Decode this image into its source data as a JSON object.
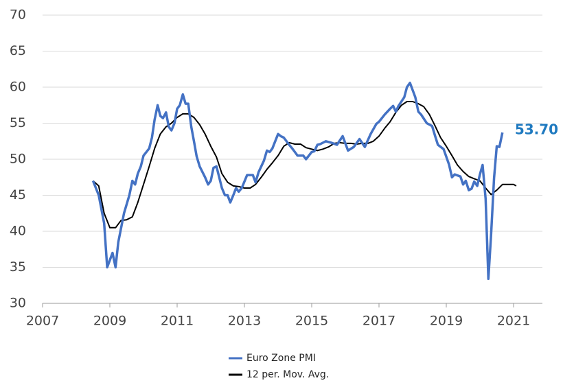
{
  "chart_data": {
    "type": "line",
    "xlim": [
      2007,
      2022
    ],
    "xticks": [
      2007,
      2009,
      2011,
      2013,
      2015,
      2017,
      2019,
      2021
    ],
    "ylim": [
      30,
      70
    ],
    "yticks": [
      30,
      35,
      40,
      45,
      50,
      55,
      60,
      65,
      70
    ],
    "grid": true,
    "legend": "bottom",
    "series": [
      {
        "name": "Euro Zone PMI",
        "color": "#4472c4",
        "x": [
          2008.5,
          2008.67,
          2008.83,
          2008.92,
          2009.0,
          2009.08,
          2009.17,
          2009.25,
          2009.42,
          2009.58,
          2009.67,
          2009.75,
          2009.83,
          2009.92,
          2010.0,
          2010.17,
          2010.25,
          2010.33,
          2010.42,
          2010.5,
          2010.58,
          2010.67,
          2010.75,
          2010.83,
          2010.92,
          2011.0,
          2011.08,
          2011.17,
          2011.25,
          2011.33,
          2011.42,
          2011.5,
          2011.58,
          2011.67,
          2011.83,
          2011.92,
          2012.0,
          2012.08,
          2012.17,
          2012.33,
          2012.42,
          2012.5,
          2012.58,
          2012.67,
          2012.75,
          2012.83,
          2012.92,
          2013.08,
          2013.25,
          2013.33,
          2013.42,
          2013.58,
          2013.67,
          2013.75,
          2013.83,
          2014.0,
          2014.08,
          2014.17,
          2014.33,
          2014.42,
          2014.5,
          2014.58,
          2014.75,
          2014.83,
          2015.0,
          2015.08,
          2015.17,
          2015.25,
          2015.42,
          2015.58,
          2015.75,
          2015.92,
          2016.08,
          2016.25,
          2016.42,
          2016.58,
          2016.75,
          2016.92,
          2017.0,
          2017.17,
          2017.33,
          2017.42,
          2017.5,
          2017.58,
          2017.75,
          2017.83,
          2017.92,
          2018.0,
          2018.08,
          2018.17,
          2018.25,
          2018.42,
          2018.58,
          2018.67,
          2018.75,
          2018.92,
          2019.08,
          2019.17,
          2019.25,
          2019.42,
          2019.5,
          2019.58,
          2019.67,
          2019.75,
          2019.83,
          2019.92,
          2020.0,
          2020.08,
          2020.17,
          2020.25,
          2020.33,
          2020.42,
          2020.5,
          2020.58,
          2020.67
        ],
        "values": [
          47,
          45,
          41.1,
          35,
          36,
          37,
          35,
          38.5,
          42.5,
          45,
          47,
          46.5,
          48,
          49,
          50.5,
          51.5,
          53,
          55.5,
          57.5,
          56,
          55.7,
          56.5,
          54.5,
          54,
          55,
          57,
          57.5,
          59,
          57.7,
          57.7,
          54.5,
          52.5,
          50.4,
          49,
          47.5,
          46.5,
          47,
          48.8,
          49,
          46,
          45,
          45,
          44,
          45,
          46,
          45.5,
          46,
          47.8,
          47.8,
          46.8,
          48.2,
          49.8,
          51.2,
          51,
          51.5,
          53.5,
          53.2,
          53,
          52,
          51.5,
          51,
          50.5,
          50.5,
          50,
          51,
          51.1,
          52,
          52.1,
          52.5,
          52.3,
          52,
          53.2,
          51.2,
          51.7,
          52.8,
          51.7,
          53.5,
          54.9,
          55.2,
          56.2,
          57,
          57.4,
          56.6,
          57.4,
          58.6,
          60,
          60.6,
          59.6,
          58.6,
          56.6,
          56.2,
          55,
          54.6,
          53.2,
          52,
          51.4,
          49.3,
          47.5,
          47.9,
          47.6,
          46.5,
          47,
          45.7,
          45.9,
          46.9,
          46.3,
          47.9,
          49.2,
          44.5,
          33.4,
          39.4,
          47.4,
          51.8,
          51.7,
          53.7
        ]
      },
      {
        "name": "12 per. Mov. Avg.",
        "color": "#000000",
        "x": [
          2008.5,
          2008.67,
          2008.83,
          2009.0,
          2009.17,
          2009.33,
          2009.5,
          2009.67,
          2009.83,
          2010.0,
          2010.17,
          2010.33,
          2010.5,
          2010.67,
          2010.83,
          2011.0,
          2011.17,
          2011.33,
          2011.5,
          2011.67,
          2011.83,
          2012.0,
          2012.17,
          2012.33,
          2012.5,
          2012.67,
          2012.83,
          2013.0,
          2013.17,
          2013.33,
          2013.5,
          2013.67,
          2013.83,
          2014.0,
          2014.17,
          2014.33,
          2014.5,
          2014.67,
          2014.83,
          2015.0,
          2015.17,
          2015.33,
          2015.5,
          2015.67,
          2015.83,
          2016.0,
          2016.17,
          2016.33,
          2016.5,
          2016.67,
          2016.83,
          2017.0,
          2017.17,
          2017.33,
          2017.5,
          2017.67,
          2017.83,
          2018.0,
          2018.17,
          2018.33,
          2018.5,
          2018.67,
          2018.83,
          2019.0,
          2019.17,
          2019.33,
          2019.5,
          2019.67,
          2019.83,
          2020.0,
          2020.17,
          2020.33,
          2020.5,
          2020.67,
          2020.83,
          2021.0,
          2021.08
        ],
        "values": [
          47,
          46.3,
          42.5,
          40.5,
          40.5,
          41.5,
          41.6,
          42,
          44,
          46.5,
          49,
          51.5,
          53.5,
          54.5,
          55,
          55.8,
          56.3,
          56.3,
          55.8,
          54.8,
          53.5,
          51.8,
          50.3,
          48,
          46.8,
          46.3,
          46.2,
          46,
          46,
          46.5,
          47.5,
          48.6,
          49.5,
          50.5,
          51.8,
          52.3,
          52.1,
          52.1,
          51.6,
          51.4,
          51.2,
          51.4,
          51.7,
          52.2,
          52.3,
          52.2,
          52.2,
          52.1,
          52.2,
          52.2,
          52.5,
          53.2,
          54.3,
          55.2,
          56.5,
          57.5,
          58,
          58,
          57.7,
          57.3,
          56.2,
          54.6,
          53,
          51.8,
          50.5,
          49.2,
          48.3,
          47.6,
          47.3,
          47,
          46,
          45.1,
          45.7,
          46.5,
          46.5,
          46.5,
          46.3
        ]
      }
    ],
    "annotations": [
      {
        "text": "53.70",
        "x": 2020.67,
        "y": 53.7,
        "color": "#1f7ac0"
      }
    ]
  }
}
